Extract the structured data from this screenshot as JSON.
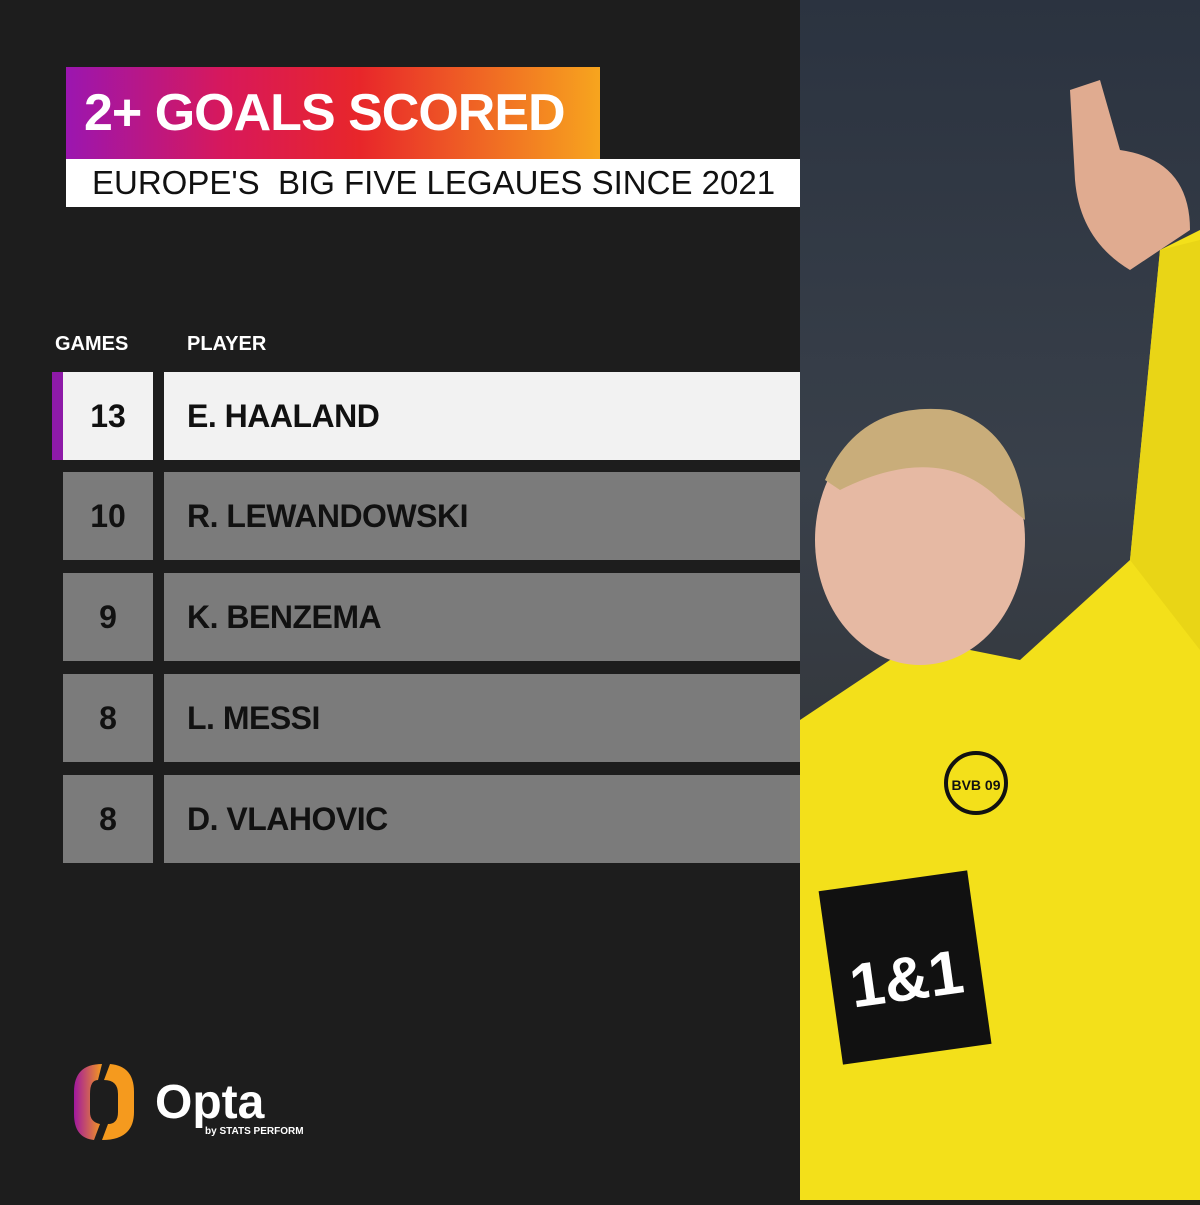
{
  "title": "2+ GOALS SCORED",
  "subtitle": "EUROPE'S  BIG FIVE LEGAUES SINCE 2021",
  "headers": {
    "games": "GAMES",
    "player": "PLAYER"
  },
  "rows": [
    {
      "games": "13",
      "player": "E. HAALAND",
      "highlight": true
    },
    {
      "games": "10",
      "player": "R. LEWANDOWSKI"
    },
    {
      "games": "9",
      "player": "K. BENZEMA"
    },
    {
      "games": "8",
      "player": "L. MESSI"
    },
    {
      "games": "8",
      "player": "D. VLAHOVIC"
    }
  ],
  "logo": {
    "name": "Opta",
    "tagline": "by STATS PERFORM"
  },
  "photo": {
    "shirt_sponsor": "1&1",
    "crest": "BVB 09"
  },
  "colors": {
    "highlight": "#8e1aa8",
    "row": "#7b7b7b",
    "background": "#1d1d1d"
  }
}
